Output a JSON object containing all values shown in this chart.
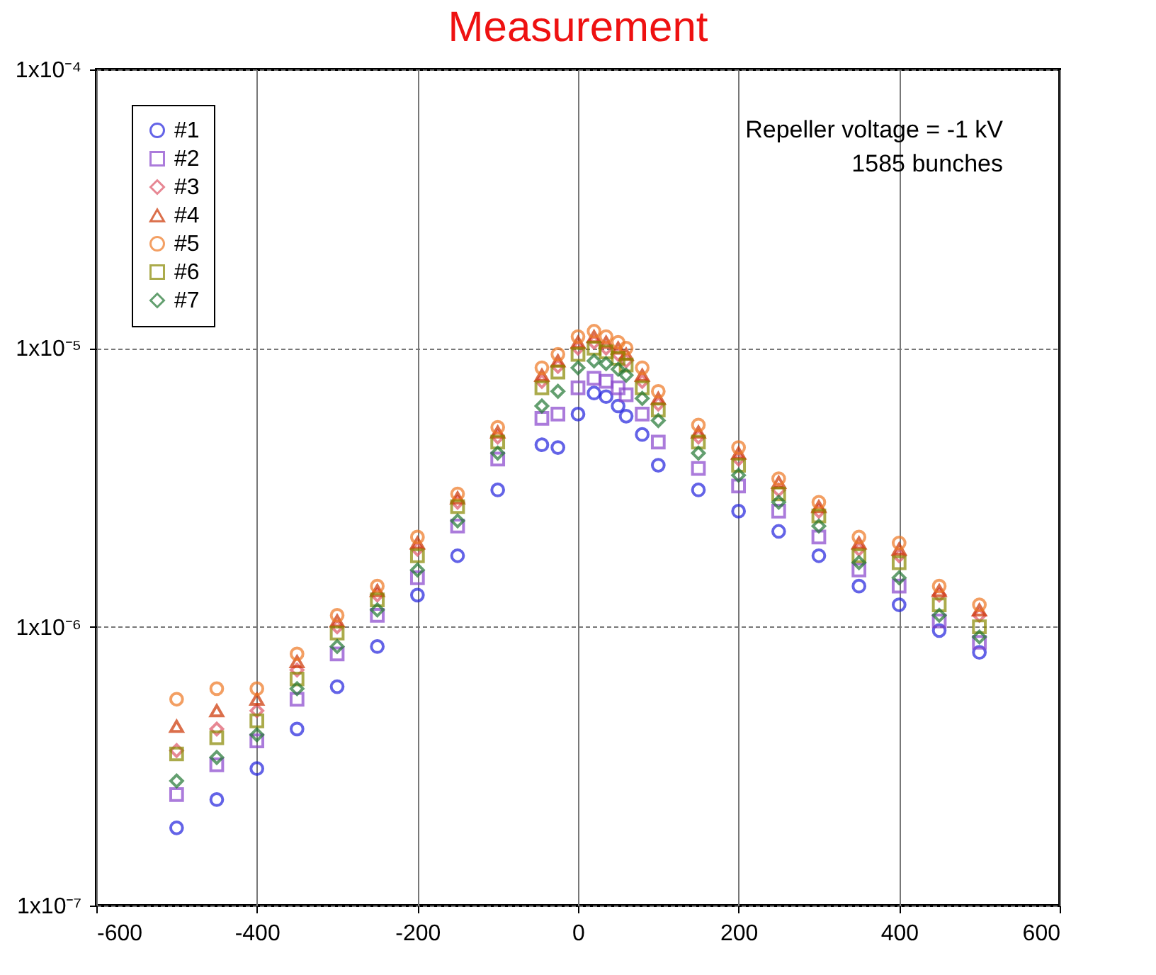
{
  "chart_data": {
    "type": "scatter",
    "title": "Measurement",
    "annotations": [
      "Repeller voltage = -1 kV",
      "1585 bunches"
    ],
    "x": [
      -500,
      -450,
      -400,
      -350,
      -300,
      -250,
      -200,
      -150,
      -100,
      -45,
      -25,
      0,
      20,
      35,
      50,
      60,
      80,
      100,
      150,
      200,
      250,
      300,
      350,
      400,
      450,
      500
    ],
    "log": "y",
    "xlim": [
      -600,
      600
    ],
    "xticks": [
      -600,
      -400,
      -200,
      0,
      200,
      400,
      600
    ],
    "ylim": [
      1e-07,
      0.0001
    ],
    "yticks": [
      {
        "value": 1e-07,
        "label": "1x10⁻⁷"
      },
      {
        "value": 1e-06,
        "label": "1x10⁻⁶"
      },
      {
        "value": 1e-05,
        "label": "1x10⁻⁵"
      },
      {
        "value": 0.0001,
        "label": "1x10⁻⁴"
      }
    ],
    "grid": true,
    "legend": "top left",
    "series": [
      {
        "name": "#1",
        "color": "#2222dd",
        "marker": "circle",
        "values": [
          1.9e-07,
          2.4e-07,
          3.1e-07,
          4.3e-07,
          6.1e-07,
          8.5e-07,
          1.3e-06,
          1.8e-06,
          3.1e-06,
          4.5e-06,
          4.4e-06,
          5.8e-06,
          6.9e-06,
          6.7e-06,
          6.2e-06,
          5.7e-06,
          4.9e-06,
          3.8e-06,
          3.1e-06,
          2.6e-06,
          2.2e-06,
          1.8e-06,
          1.4e-06,
          1.2e-06,
          9.7e-07,
          8.1e-07
        ]
      },
      {
        "name": "#2",
        "color": "#8844cc",
        "marker": "square",
        "values": [
          2.5e-07,
          3.2e-07,
          3.9e-07,
          5.5e-07,
          8e-07,
          1.1e-06,
          1.5e-06,
          2.3e-06,
          4e-06,
          5.6e-06,
          5.8e-06,
          7.2e-06,
          7.8e-06,
          7.6e-06,
          7.2e-06,
          6.8e-06,
          5.8e-06,
          4.6e-06,
          3.7e-06,
          3.2e-06,
          2.6e-06,
          2.1e-06,
          1.6e-06,
          1.4e-06,
          1.05e-06,
          8.8e-07
        ]
      },
      {
        "name": "#3",
        "color": "#dd5566",
        "marker": "diamond",
        "values": [
          3.6e-07,
          4.3e-07,
          5e-07,
          7e-07,
          1e-06,
          1.3e-06,
          1.9e-06,
          2.8e-06,
          4.8e-06,
          7.6e-06,
          8.6e-06,
          1e-05,
          1.05e-05,
          1e-05,
          9.5e-06,
          9e-06,
          7.6e-06,
          6.3e-06,
          4.8e-06,
          4e-06,
          3.1e-06,
          2.6e-06,
          1.9e-06,
          1.8e-06,
          1.3e-06,
          1.1e-06
        ]
      },
      {
        "name": "#4",
        "color": "#cc3300",
        "marker": "triangle",
        "values": [
          4.4e-07,
          5e-07,
          5.5e-07,
          7.5e-07,
          1.05e-06,
          1.35e-06,
          2e-06,
          2.9e-06,
          5e-06,
          8e-06,
          9e-06,
          1.05e-05,
          1.1e-05,
          1.05e-05,
          1e-05,
          9.5e-06,
          8e-06,
          6.6e-06,
          5e-06,
          4.2e-06,
          3.3e-06,
          2.7e-06,
          2e-06,
          1.9e-06,
          1.35e-06,
          1.15e-06
        ]
      },
      {
        "name": "#5",
        "color": "#ee7722",
        "marker": "circle",
        "values": [
          5.5e-07,
          6e-07,
          6e-07,
          8e-07,
          1.1e-06,
          1.4e-06,
          2.1e-06,
          3e-06,
          5.2e-06,
          8.5e-06,
          9.5e-06,
          1.1e-05,
          1.15e-05,
          1.1e-05,
          1.05e-05,
          1e-05,
          8.5e-06,
          7e-06,
          5.3e-06,
          4.4e-06,
          3.4e-06,
          2.8e-06,
          2.1e-06,
          2e-06,
          1.4e-06,
          1.2e-06
        ]
      },
      {
        "name": "#6",
        "color": "#888800",
        "marker": "square",
        "values": [
          3.5e-07,
          4e-07,
          4.6e-07,
          6.5e-07,
          9.5e-07,
          1.25e-06,
          1.8e-06,
          2.7e-06,
          4.6e-06,
          7.2e-06,
          8.2e-06,
          9.5e-06,
          1e-05,
          9.7e-06,
          9.2e-06,
          8.7e-06,
          7.2e-06,
          6e-06,
          4.6e-06,
          3.8e-06,
          3e-06,
          2.5e-06,
          1.8e-06,
          1.7e-06,
          1.2e-06,
          1e-06
        ]
      },
      {
        "name": "#7",
        "color": "#227733",
        "marker": "diamond",
        "values": [
          2.8e-07,
          3.4e-07,
          4.1e-07,
          6e-07,
          8.5e-07,
          1.15e-06,
          1.6e-06,
          2.4e-06,
          4.2e-06,
          6.2e-06,
          7e-06,
          8.5e-06,
          9e-06,
          8.8e-06,
          8.4e-06,
          8e-06,
          6.6e-06,
          5.5e-06,
          4.2e-06,
          3.5e-06,
          2.8e-06,
          2.3e-06,
          1.7e-06,
          1.5e-06,
          1.1e-06,
          9.2e-07
        ]
      }
    ]
  }
}
